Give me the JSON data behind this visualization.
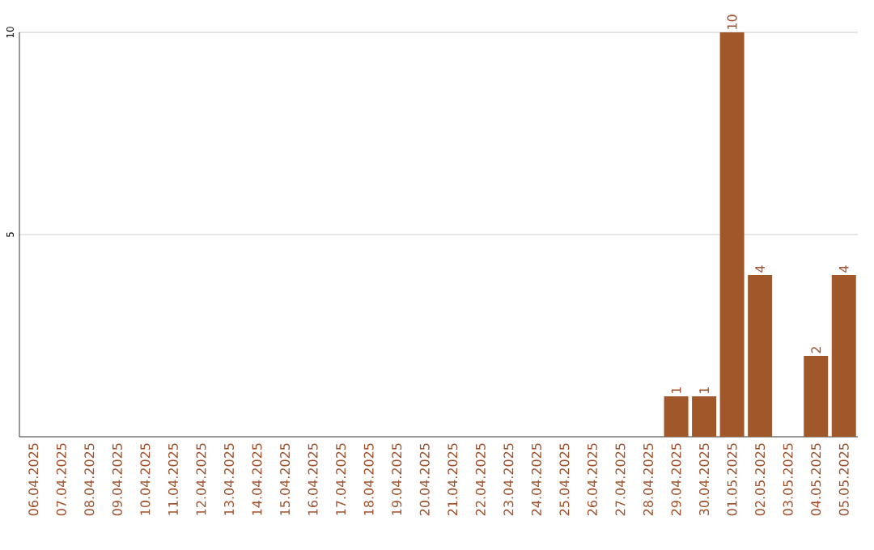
{
  "chart_data": {
    "type": "bar",
    "categories": [
      "06.04.2025",
      "07.04.2025",
      "08.04.2025",
      "09.04.2025",
      "10.04.2025",
      "11.04.2025",
      "12.04.2025",
      "13.04.2025",
      "14.04.2025",
      "15.04.2025",
      "16.04.2025",
      "17.04.2025",
      "18.04.2025",
      "19.04.2025",
      "20.04.2025",
      "21.04.2025",
      "22.04.2025",
      "23.04.2025",
      "24.04.2025",
      "25.04.2025",
      "26.04.2025",
      "27.04.2025",
      "28.04.2025",
      "29.04.2025",
      "30.04.2025",
      "01.05.2025",
      "02.05.2025",
      "03.05.2025",
      "04.05.2025",
      "05.05.2025"
    ],
    "values": [
      0,
      0,
      0,
      0,
      0,
      0,
      0,
      0,
      0,
      0,
      0,
      0,
      0,
      0,
      0,
      0,
      0,
      0,
      0,
      0,
      0,
      0,
      0,
      1,
      1,
      10,
      4,
      0,
      2,
      4
    ],
    "value_labels": [
      null,
      null,
      null,
      null,
      null,
      null,
      null,
      null,
      null,
      null,
      null,
      null,
      null,
      null,
      null,
      null,
      null,
      null,
      null,
      null,
      null,
      null,
      null,
      "1",
      "1",
      "10",
      "4",
      null,
      "2",
      "4"
    ],
    "color": "#a0582a",
    "ylim": [
      0,
      10
    ],
    "yticks": [
      5,
      10
    ],
    "grid": "y"
  }
}
